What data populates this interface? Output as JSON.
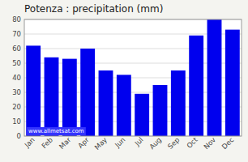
{
  "chart_data": {
    "type": "bar",
    "title": "Potenza : precipitation (mm)",
    "categories": [
      "Jan",
      "Feb",
      "Mar",
      "Apr",
      "May",
      "Jun",
      "Jul",
      "Aug",
      "Sep",
      "Oct",
      "Nov",
      "Dec"
    ],
    "values": [
      62,
      54,
      53,
      60,
      45,
      42,
      29,
      35,
      45,
      69,
      80,
      73
    ],
    "color": "#0000ee",
    "ylim": [
      0,
      80
    ],
    "yticks": [
      0,
      10,
      20,
      30,
      40,
      50,
      60,
      70,
      80
    ],
    "grid": true,
    "annotations": [
      "www.allmetsat.com"
    ]
  }
}
